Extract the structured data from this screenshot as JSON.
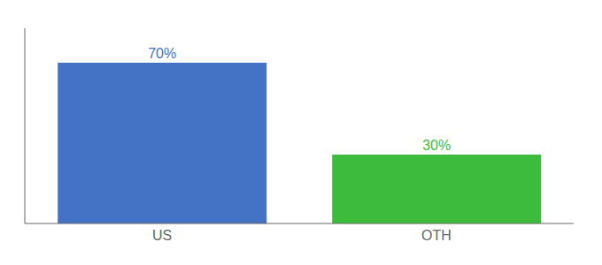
{
  "chart_data": {
    "type": "bar",
    "categories": [
      "US",
      "OTH"
    ],
    "values": [
      70,
      30
    ],
    "value_labels": [
      "70%",
      "30%"
    ],
    "colors": [
      "#4472c4",
      "#3dbb3d"
    ],
    "ylim": [
      0,
      85
    ],
    "data_labels": true,
    "tick_labels": "x",
    "grid": false
  }
}
